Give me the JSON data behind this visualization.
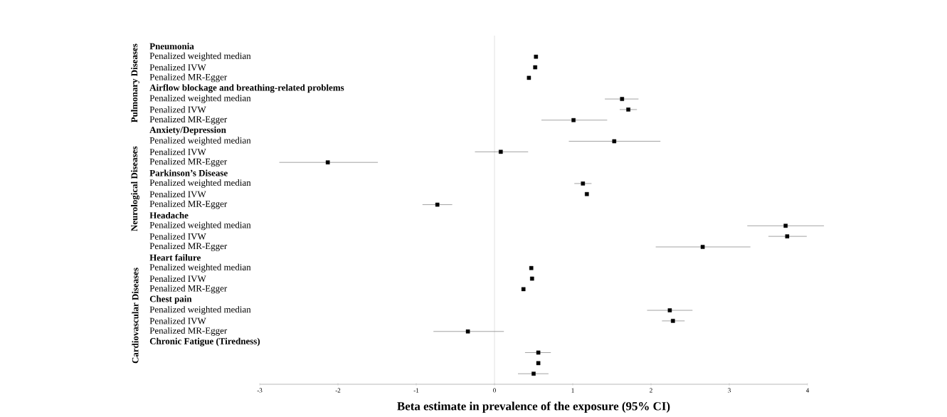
{
  "chart_data": {
    "type": "scatter",
    "orientation": "horizontal",
    "xlabel": "Beta estimate in prevalence of the exposure (95% CI)",
    "categories": [
      "Penalized weighted median",
      "Penalized IVW",
      "Penalized MR-Egger",
      "Penalized weighted median",
      "Penalized IVW",
      "Penalized MR-Egger",
      "Penalized weighted median",
      "Penalized IVW",
      "Penalized MR-Egger",
      "Penalized weighted median",
      "Penalized IVW",
      "Penalized MR-Egger",
      "Penalized weighted median",
      "Penalized IVW",
      "Penalized MR-Egger",
      "Penalized weighted median",
      "Penalized IVW",
      "Penalized MR-Egger",
      "Penalized weighted median",
      "Penalized IVW",
      "Penalized MR-Egger",
      null,
      null,
      null
    ],
    "values": [
      0.53,
      0.52,
      0.44,
      1.63,
      1.71,
      1.01,
      1.53,
      0.08,
      -2.13,
      1.13,
      1.18,
      -0.73,
      3.72,
      3.74,
      2.66,
      0.47,
      0.48,
      0.37,
      2.24,
      2.28,
      -0.34,
      0.56,
      0.56,
      0.5
    ],
    "errors": [
      null,
      null,
      null,
      [
        1.41,
        1.84
      ],
      [
        1.6,
        1.82
      ],
      [
        0.6,
        1.44
      ],
      [
        0.95,
        2.12
      ],
      [
        -0.25,
        0.43
      ],
      [
        -2.75,
        -1.49
      ],
      [
        1.02,
        1.24
      ],
      null,
      [
        -0.92,
        -0.54
      ],
      [
        3.23,
        4.21
      ],
      [
        3.5,
        3.99
      ],
      [
        2.06,
        3.27
      ],
      null,
      null,
      null,
      [
        1.95,
        2.53
      ],
      [
        2.14,
        2.43
      ],
      [
        -0.78,
        0.12
      ],
      [
        0.39,
        0.72
      ],
      null,
      [
        0.3,
        0.69
      ]
    ],
    "color": "#000000",
    "marker": "square",
    "xlim": [
      -3,
      4
    ],
    "xticks": [
      -3,
      -2,
      -1,
      0,
      1,
      2,
      3,
      4
    ],
    "ref_lines": [
      {
        "axis": "x",
        "value": 0,
        "color": "#cccccc"
      }
    ],
    "annotations": [
      "Pneumonia",
      "Airflow blockage and breathing-related problems",
      "Anxiety/Depression",
      "Parkinson’s Disease",
      "Headache",
      "Heart failure",
      "Chest pain",
      "Chronic Fatigue (Tiredness)",
      "Pulmonary Diseases",
      "Neurological Diseases",
      "Cardiovascular Diseases"
    ]
  }
}
